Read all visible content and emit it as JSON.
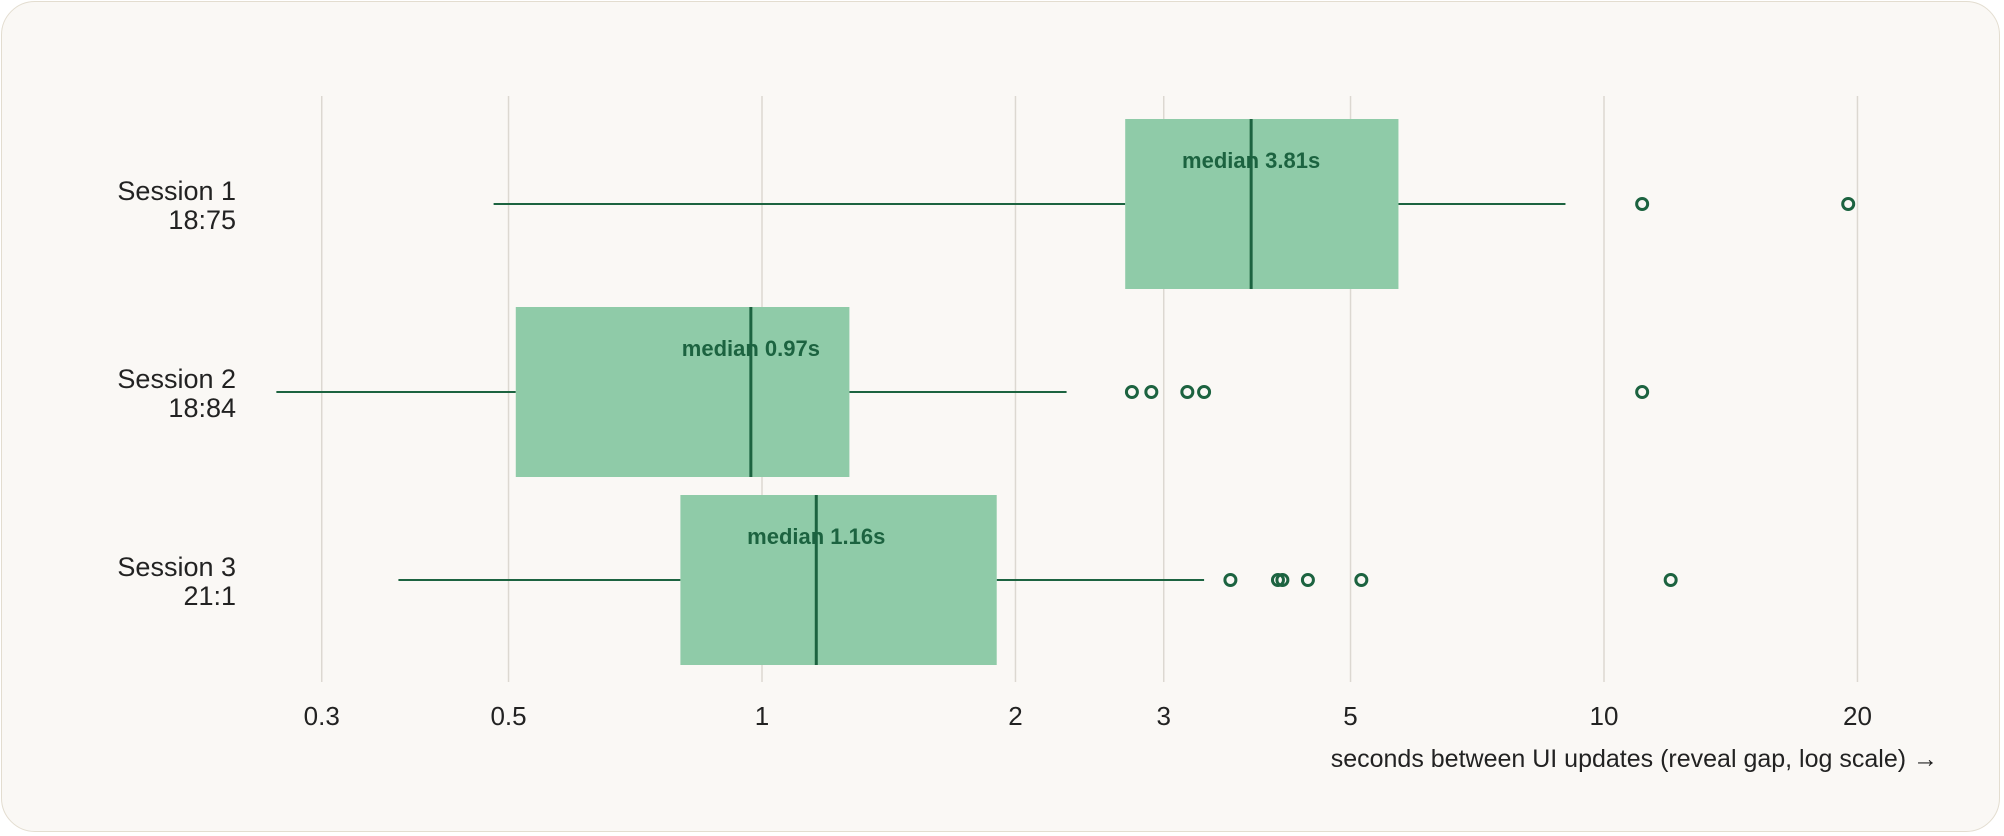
{
  "chart_data": {
    "type": "boxplot",
    "xlabel": "seconds between UI updates (reveal gap, log scale) →",
    "x_scale": "log",
    "xlim": [
      0.25,
      26
    ],
    "x_ticks": [
      0.3,
      0.5,
      1,
      2,
      3,
      5,
      10,
      20
    ],
    "x_tick_labels": [
      "0.3",
      "0.5",
      "1",
      "2",
      "3",
      "5",
      "10",
      "20"
    ],
    "grid": "vertical",
    "colors": {
      "box_fill": "#8fcba8",
      "line": "#1c6340",
      "median_text": "#1c6340",
      "background": "#faf8f5"
    },
    "series": [
      {
        "name": "Session 1",
        "sublabel": "18:75",
        "whisker_low": 0.48,
        "q1": 2.7,
        "median": 3.81,
        "q3": 5.7,
        "whisker_high": 9.0,
        "outliers": [
          11.1,
          19.5
        ],
        "median_label": "median 3.81s"
      },
      {
        "name": "Session 2",
        "sublabel": "18:84",
        "whisker_low": 0.265,
        "q1": 0.51,
        "median": 0.97,
        "q3": 1.27,
        "whisker_high": 2.3,
        "outliers": [
          2.75,
          2.9,
          3.2,
          3.35,
          11.1
        ],
        "median_label": "median 0.97s"
      },
      {
        "name": "Session 3",
        "sublabel": "21:1",
        "whisker_low": 0.37,
        "q1": 0.8,
        "median": 1.16,
        "q3": 1.9,
        "whisker_high": 3.35,
        "outliers": [
          3.6,
          4.1,
          4.15,
          4.45,
          5.15,
          12.0
        ],
        "median_label": "median 1.16s"
      }
    ]
  }
}
